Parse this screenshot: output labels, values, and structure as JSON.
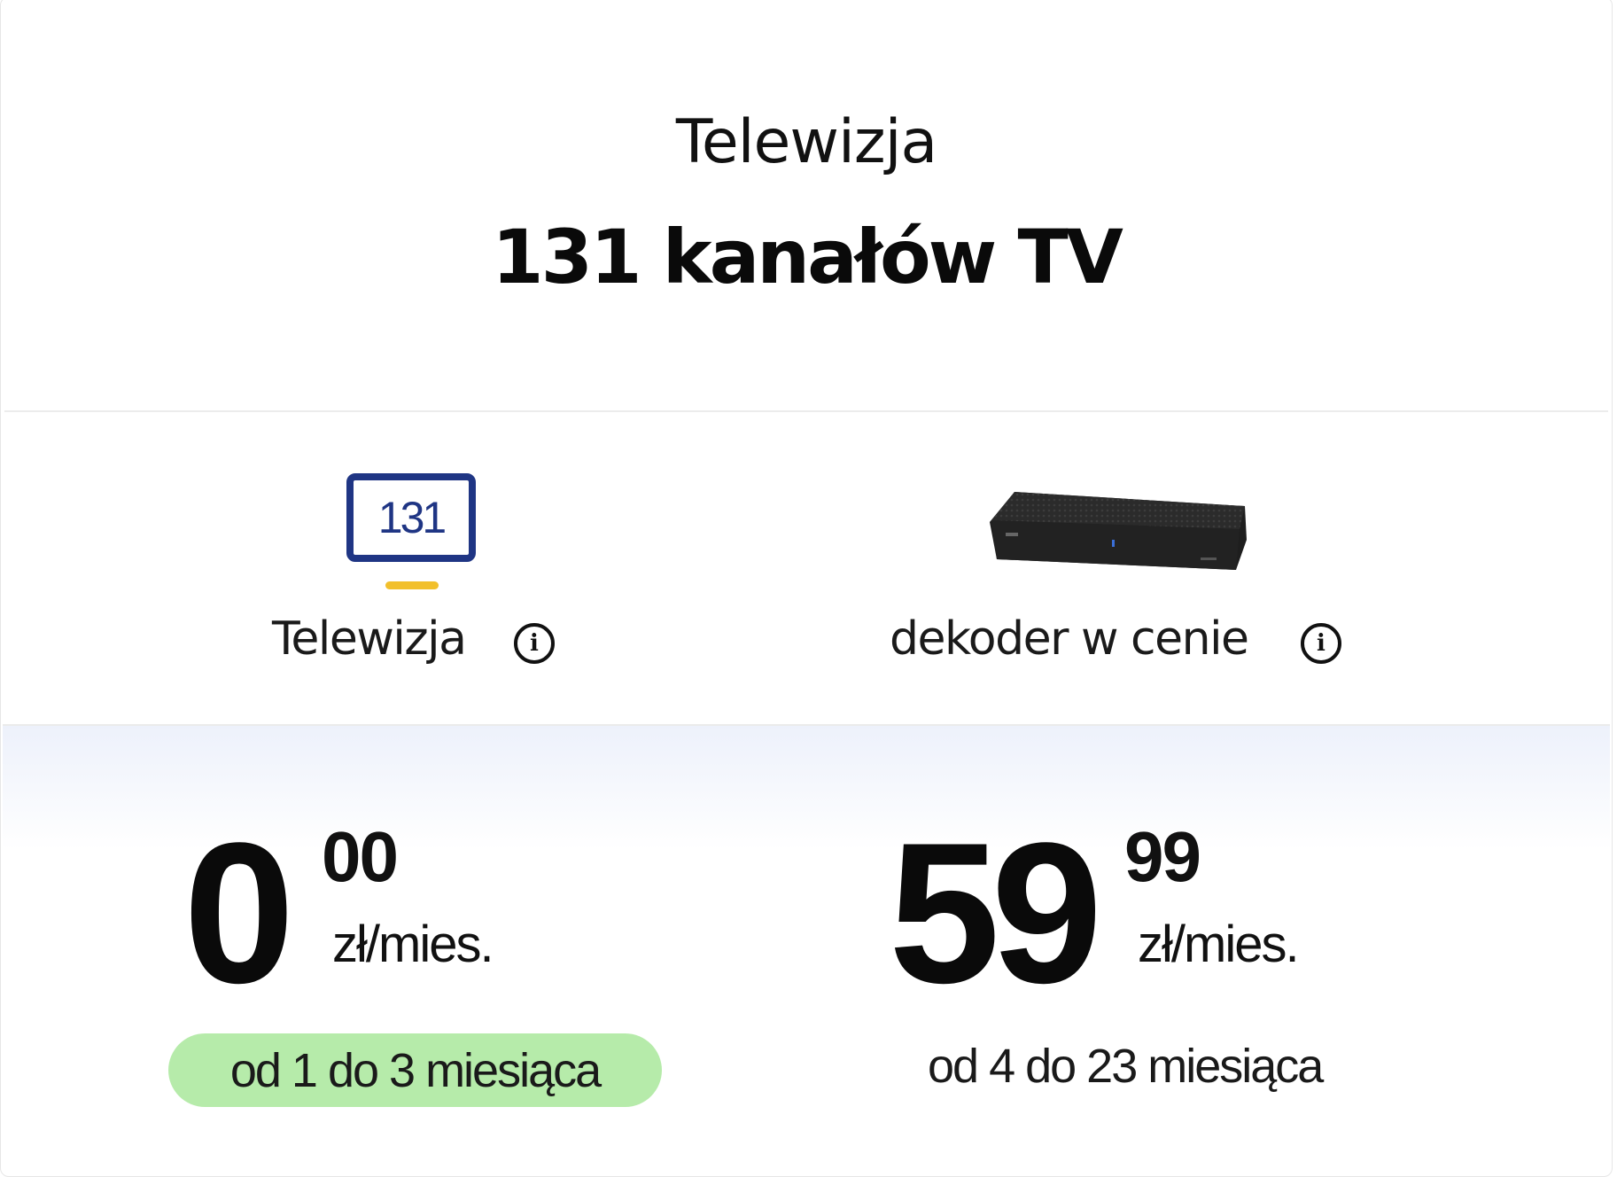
{
  "header": {
    "category": "Telewizja",
    "title": "131 kanałów TV"
  },
  "features": [
    {
      "icon": "tv-icon",
      "icon_text": "131",
      "label": "Telewizja",
      "info_icon": "info-icon"
    },
    {
      "icon": "decoder-image",
      "label": "dekoder w cenie",
      "info_icon": "info-icon"
    }
  ],
  "prices": [
    {
      "whole": "0",
      "cents": "00",
      "unit": "zł/mies.",
      "period": "od 1 do 3 miesiąca",
      "highlighted": true
    },
    {
      "whole": "59",
      "cents": "99",
      "unit": "zł/mies.",
      "period": "od 4 do 23 miesiąca",
      "highlighted": false
    }
  ],
  "colors": {
    "tv_icon": "#1f3584",
    "tv_stand": "#f2c02c",
    "promo_pill": "#b6ebaa",
    "price_gradient_top": "#edf1fb"
  }
}
